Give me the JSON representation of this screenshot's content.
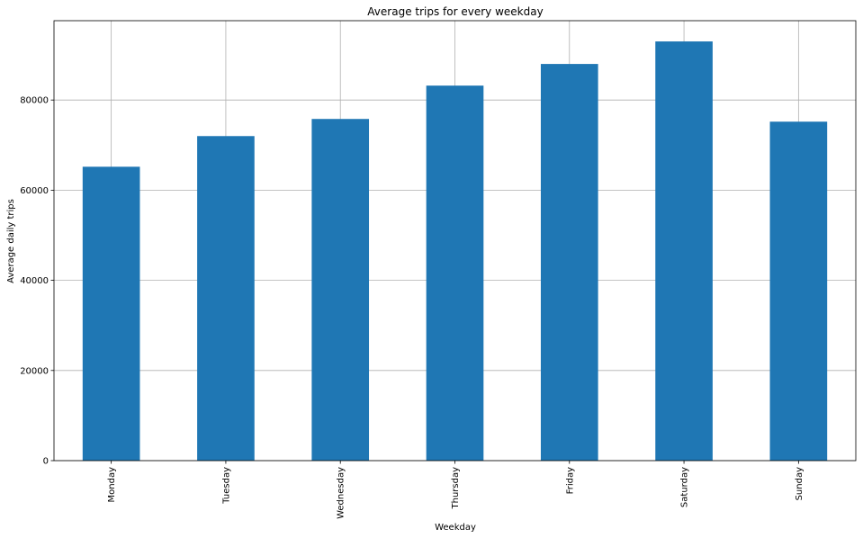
{
  "chart_data": {
    "type": "bar",
    "title": "Average trips for every weekday",
    "xlabel": "Weekday",
    "ylabel": "Average daily trips",
    "categories": [
      "Monday",
      "Tuesday",
      "Wednesday",
      "Thursday",
      "Friday",
      "Saturday",
      "Sunday"
    ],
    "values": [
      65200,
      72000,
      75800,
      83200,
      88000,
      93000,
      75200
    ],
    "ylim": [
      0,
      97600
    ],
    "yticks": [
      0,
      20000,
      40000,
      60000,
      80000
    ],
    "ytick_labels": [
      "0",
      "20000",
      "40000",
      "60000",
      "80000"
    ],
    "grid": true,
    "bar_color": "#1f77b4"
  }
}
